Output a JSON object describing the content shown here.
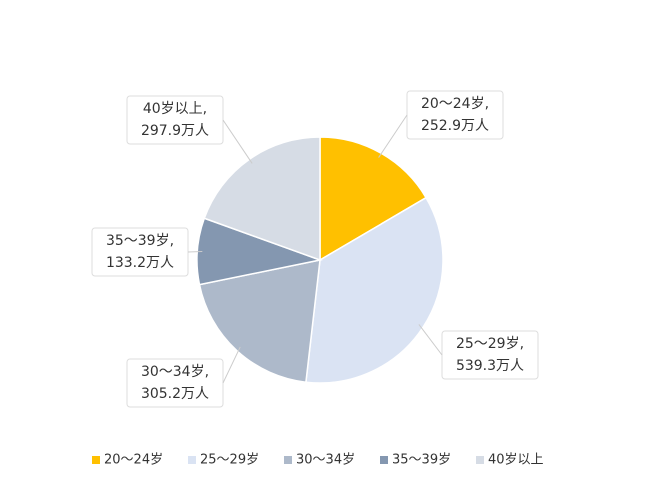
{
  "chart_data": {
    "type": "pie",
    "categories": [
      "20～24岁",
      "25～29岁",
      "30～34岁",
      "35～39岁",
      "40岁以上"
    ],
    "callout_labels": [
      "20～24岁,",
      "25～29岁,",
      "30～34岁,",
      "35～39岁,",
      "40岁以上,"
    ],
    "values": [
      252.9,
      539.3,
      305.2,
      133.2,
      297.9
    ],
    "value_labels": [
      "252.9万人",
      "539.3万人",
      "305.2万人",
      "133.2万人",
      "297.9万人"
    ],
    "colors": [
      "#ffc000",
      "#dae3f3",
      "#adb9ca",
      "#8497b0",
      "#d6dce5"
    ],
    "legend": "bottom"
  }
}
